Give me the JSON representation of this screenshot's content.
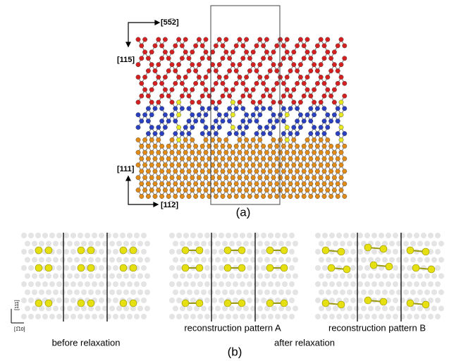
{
  "panel_a": {
    "label": "(a)",
    "axes_top": {
      "horizontal": "[55̅2]",
      "vertical": "[115]"
    },
    "axes_bottom": {
      "horizontal": "[11̅2]",
      "vertical": "[111]"
    }
  },
  "panel_b": {
    "label": "(b)",
    "axes": {
      "vertical": "[111]",
      "horizontal": "[1̅10]"
    },
    "captions": [
      "before relaxation",
      "reconstruction pattern A",
      "reconstruction pattern B"
    ],
    "group_caption": "after relaxation"
  }
}
